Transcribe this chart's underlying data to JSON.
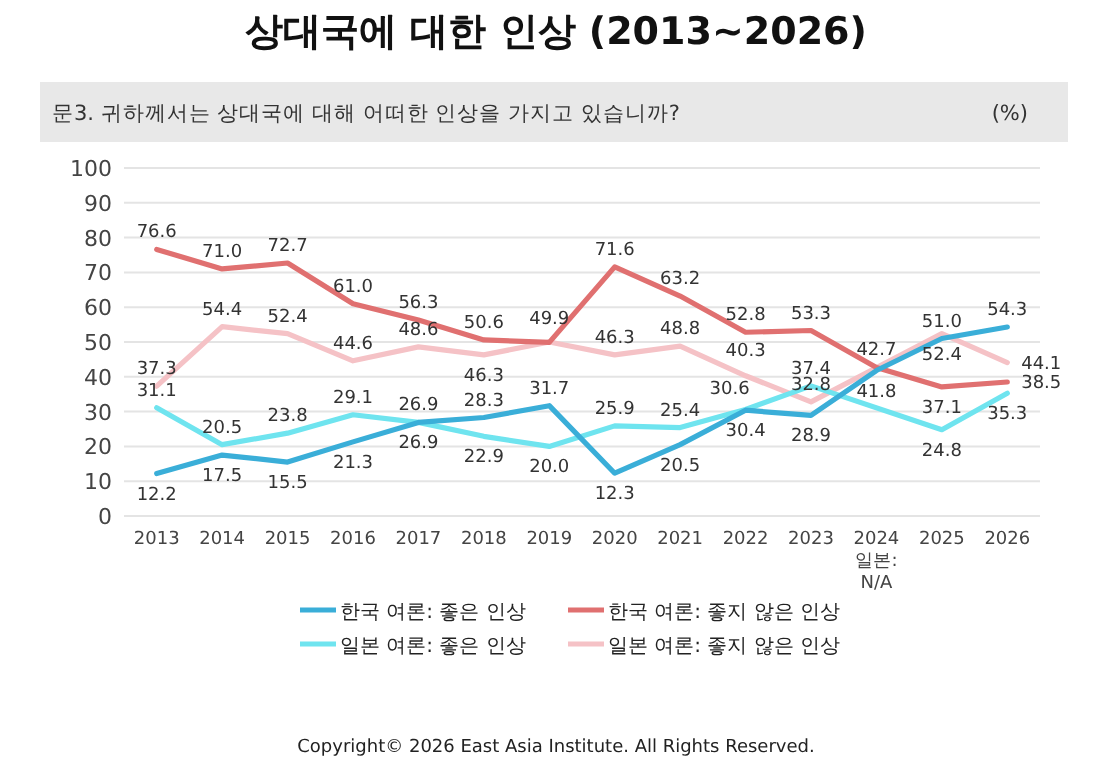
{
  "chart_data": {
    "type": "line",
    "title": "상대국에 대한 인상 (2013~2026)",
    "subtitle": "문3. 귀하께서는 상대국에 대해 어떠한 인상을 가지고 있습니까?",
    "ylabel": "(%)",
    "categories": [
      "2013",
      "2014",
      "2015",
      "2016",
      "2017",
      "2018",
      "2019",
      "2020",
      "2021",
      "2022",
      "2023",
      "2024 일본: N/A",
      "2025",
      "2026"
    ],
    "series": [
      {
        "name": "한국 여론: 좋은 인상",
        "color": "#3aaed8",
        "values": [
          12.2,
          17.5,
          15.5,
          21.3,
          26.9,
          28.3,
          31.7,
          12.3,
          20.5,
          30.4,
          28.9,
          41.8,
          51.0,
          54.3
        ],
        "value_labels": [
          "12.2",
          "17.5",
          "15.5",
          "21.3",
          "26.9",
          "28.3",
          "31.7",
          "12.3",
          "20.5",
          "30.4",
          "28.9",
          "41.8",
          "51.0",
          "54.3"
        ]
      },
      {
        "name": "한국 여론: 좋지 않은 인상",
        "color": "#e07070",
        "values": [
          76.6,
          71.0,
          72.7,
          61.0,
          56.3,
          50.6,
          49.9,
          71.6,
          63.2,
          52.8,
          53.3,
          42.7,
          37.1,
          38.5
        ],
        "value_labels": [
          "76.6",
          "71.0",
          "72.7",
          "61.0",
          "56.3",
          "50.6",
          "49.9",
          "71.6",
          "63.2",
          "52.8",
          "53.3",
          "42.7",
          "37.1",
          "38.5"
        ]
      },
      {
        "name": "일본 여론: 좋은 인상",
        "color": "#6fe4ef",
        "values": [
          31.1,
          20.5,
          23.8,
          29.1,
          26.9,
          22.9,
          20.0,
          25.9,
          25.4,
          30.6,
          37.4,
          null,
          24.8,
          35.3
        ],
        "value_labels": [
          "31.1",
          "20.5",
          "23.8",
          "29.1",
          "26.9",
          "22.9",
          "20.0",
          "25.9",
          "25.4",
          "30.6",
          "37.4",
          null,
          "24.8",
          "35.3"
        ]
      },
      {
        "name": "일본 여론: 좋지 않은 인상",
        "color": "#f5c2c6",
        "values": [
          37.3,
          54.4,
          52.4,
          44.6,
          48.6,
          46.3,
          50,
          46.3,
          48.8,
          40.3,
          32.8,
          null,
          52.4,
          44.1
        ],
        "value_labels": [
          "37.3",
          "54.4",
          "52.4",
          "44.6",
          "48.6",
          "46.3",
          null,
          "46.3",
          "48.8",
          "40.3",
          "32.8",
          null,
          "52.4",
          "44.1"
        ]
      }
    ],
    "ylim": [
      0,
      100
    ],
    "yticks": [
      0,
      10,
      20,
      30,
      40,
      50,
      60,
      70,
      80,
      90,
      100
    ],
    "grid": "y",
    "legend": "bottom",
    "marker": "none",
    "line_style": "solid",
    "annotations": [
      "Copyright© 2026 East Asia Institute. All Rights Reserved."
    ]
  }
}
